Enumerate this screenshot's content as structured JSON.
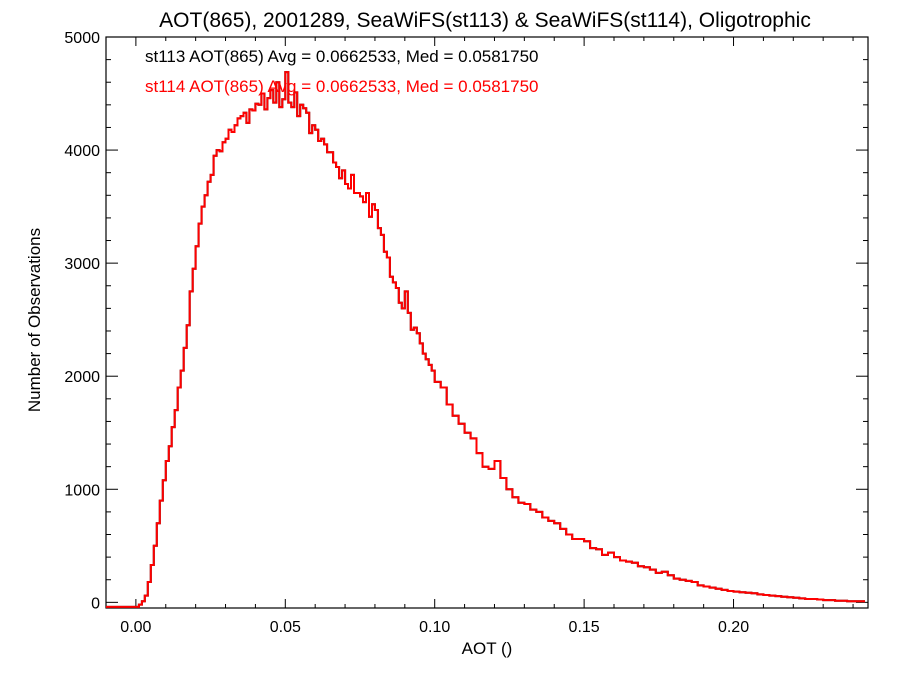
{
  "chart_data": {
    "type": "histogram-step",
    "title": "AOT(865), 2001289, SeaWiFS(st113) & SeaWiFS(st114), Oligotrophic",
    "xlabel": "AOT ()",
    "ylabel": "Number of Observations",
    "xlim": [
      -0.01,
      0.245
    ],
    "ylim": [
      -50,
      5000
    ],
    "x_ticks": [
      0.0,
      0.05,
      0.1,
      0.15,
      0.2
    ],
    "x_tick_labels": [
      "0.00",
      "0.05",
      "0.10",
      "0.15",
      "0.20"
    ],
    "y_ticks": [
      0,
      1000,
      2000,
      3000,
      4000,
      5000
    ],
    "y_tick_labels": [
      "0",
      "1000",
      "2000",
      "3000",
      "4000",
      "5000"
    ],
    "grid": false,
    "annotations": [
      {
        "text": "st113 AOT(865) Avg = 0.0662533, Med = 0.0581750",
        "color": "#000000"
      },
      {
        "text": "st114 AOT(865) Avg = 0.0662533, Med = 0.0581750",
        "color": "#ff0000"
      }
    ],
    "series": [
      {
        "name": "st113",
        "color": "#000000",
        "x": [
          -0.01,
          0.0,
          0.001,
          0.002,
          0.003,
          0.004,
          0.005,
          0.006,
          0.007,
          0.008,
          0.009,
          0.01,
          0.011,
          0.012,
          0.013,
          0.014,
          0.015,
          0.016,
          0.017,
          0.018,
          0.019,
          0.02,
          0.021,
          0.022,
          0.023,
          0.024,
          0.025,
          0.026,
          0.027,
          0.028,
          0.029,
          0.03,
          0.031,
          0.032,
          0.033,
          0.034,
          0.035,
          0.036,
          0.037,
          0.038,
          0.039,
          0.04,
          0.041,
          0.042,
          0.043,
          0.044,
          0.045,
          0.046,
          0.047,
          0.048,
          0.049,
          0.05,
          0.051,
          0.052,
          0.053,
          0.054,
          0.055,
          0.056,
          0.057,
          0.058,
          0.059,
          0.06,
          0.061,
          0.062,
          0.063,
          0.064,
          0.065,
          0.066,
          0.067,
          0.068,
          0.069,
          0.07,
          0.071,
          0.072,
          0.073,
          0.074,
          0.075,
          0.076,
          0.077,
          0.078,
          0.079,
          0.08,
          0.081,
          0.082,
          0.083,
          0.084,
          0.085,
          0.086,
          0.087,
          0.088,
          0.089,
          0.09,
          0.091,
          0.092,
          0.093,
          0.094,
          0.095,
          0.096,
          0.097,
          0.098,
          0.099,
          0.1,
          0.102,
          0.104,
          0.106,
          0.108,
          0.11,
          0.112,
          0.114,
          0.116,
          0.118,
          0.12,
          0.122,
          0.124,
          0.126,
          0.128,
          0.13,
          0.132,
          0.134,
          0.136,
          0.138,
          0.14,
          0.142,
          0.144,
          0.146,
          0.148,
          0.15,
          0.152,
          0.154,
          0.156,
          0.158,
          0.16,
          0.162,
          0.164,
          0.166,
          0.168,
          0.17,
          0.172,
          0.174,
          0.176,
          0.178,
          0.18,
          0.182,
          0.184,
          0.186,
          0.188,
          0.19,
          0.192,
          0.194,
          0.196,
          0.198,
          0.2,
          0.202,
          0.204,
          0.206,
          0.208,
          0.21,
          0.212,
          0.214,
          0.216,
          0.218,
          0.22,
          0.222,
          0.224,
          0.226,
          0.228,
          0.23,
          0.232,
          0.234,
          0.236,
          0.238,
          0.24,
          0.242,
          0.244
        ],
        "y": [
          -40,
          -40,
          -20,
          10,
          60,
          180,
          330,
          500,
          700,
          900,
          1080,
          1250,
          1380,
          1550,
          1700,
          1900,
          2050,
          2250,
          2450,
          2750,
          2950,
          3150,
          3350,
          3500,
          3600,
          3720,
          3780,
          3950,
          4000,
          3990,
          4070,
          4100,
          4180,
          4160,
          4220,
          4280,
          4300,
          4330,
          4240,
          4360,
          4350,
          4410,
          4400,
          4500,
          4360,
          4460,
          4530,
          4420,
          4600,
          4380,
          4450,
          4690,
          4420,
          4380,
          4510,
          4300,
          4400,
          4370,
          4330,
          4150,
          4220,
          4180,
          4080,
          4100,
          4050,
          3980,
          3980,
          3890,
          3850,
          3750,
          3820,
          3700,
          3660,
          3780,
          3620,
          3620,
          3590,
          3540,
          3620,
          3410,
          3520,
          3470,
          3310,
          3250,
          3100,
          3050,
          2880,
          2830,
          2780,
          2650,
          2600,
          2750,
          2560,
          2410,
          2430,
          2380,
          2290,
          2200,
          2150,
          2100,
          2050,
          1950,
          1900,
          1750,
          1650,
          1580,
          1500,
          1450,
          1320,
          1200,
          1180,
          1250,
          1100,
          1000,
          930,
          880,
          870,
          820,
          800,
          750,
          720,
          700,
          650,
          600,
          560,
          560,
          540,
          480,
          470,
          420,
          440,
          400,
          370,
          360,
          350,
          320,
          310,
          290,
          260,
          270,
          240,
          210,
          200,
          190,
          180,
          150,
          140,
          130,
          120,
          110,
          100,
          95,
          90,
          85,
          80,
          70,
          65,
          60,
          55,
          50,
          45,
          40,
          35,
          30,
          30,
          25,
          20,
          20,
          15,
          15,
          10,
          10,
          10
        ]
      },
      {
        "name": "st114",
        "color": "#ff0000",
        "x": [
          -0.01,
          0.0,
          0.001,
          0.002,
          0.003,
          0.004,
          0.005,
          0.006,
          0.007,
          0.008,
          0.009,
          0.01,
          0.011,
          0.012,
          0.013,
          0.014,
          0.015,
          0.016,
          0.017,
          0.018,
          0.019,
          0.02,
          0.021,
          0.022,
          0.023,
          0.024,
          0.025,
          0.026,
          0.027,
          0.028,
          0.029,
          0.03,
          0.031,
          0.032,
          0.033,
          0.034,
          0.035,
          0.036,
          0.037,
          0.038,
          0.039,
          0.04,
          0.041,
          0.042,
          0.043,
          0.044,
          0.045,
          0.046,
          0.047,
          0.048,
          0.049,
          0.05,
          0.051,
          0.052,
          0.053,
          0.054,
          0.055,
          0.056,
          0.057,
          0.058,
          0.059,
          0.06,
          0.061,
          0.062,
          0.063,
          0.064,
          0.065,
          0.066,
          0.067,
          0.068,
          0.069,
          0.07,
          0.071,
          0.072,
          0.073,
          0.074,
          0.075,
          0.076,
          0.077,
          0.078,
          0.079,
          0.08,
          0.081,
          0.082,
          0.083,
          0.084,
          0.085,
          0.086,
          0.087,
          0.088,
          0.089,
          0.09,
          0.091,
          0.092,
          0.093,
          0.094,
          0.095,
          0.096,
          0.097,
          0.098,
          0.099,
          0.1,
          0.102,
          0.104,
          0.106,
          0.108,
          0.11,
          0.112,
          0.114,
          0.116,
          0.118,
          0.12,
          0.122,
          0.124,
          0.126,
          0.128,
          0.13,
          0.132,
          0.134,
          0.136,
          0.138,
          0.14,
          0.142,
          0.144,
          0.146,
          0.148,
          0.15,
          0.152,
          0.154,
          0.156,
          0.158,
          0.16,
          0.162,
          0.164,
          0.166,
          0.168,
          0.17,
          0.172,
          0.174,
          0.176,
          0.178,
          0.18,
          0.182,
          0.184,
          0.186,
          0.188,
          0.19,
          0.192,
          0.194,
          0.196,
          0.198,
          0.2,
          0.202,
          0.204,
          0.206,
          0.208,
          0.21,
          0.212,
          0.214,
          0.216,
          0.218,
          0.22,
          0.222,
          0.224,
          0.226,
          0.228,
          0.23,
          0.232,
          0.234,
          0.236,
          0.238,
          0.24,
          0.242,
          0.244
        ],
        "y": [
          -40,
          -40,
          -20,
          10,
          60,
          180,
          330,
          500,
          700,
          900,
          1080,
          1250,
          1380,
          1550,
          1700,
          1900,
          2050,
          2250,
          2450,
          2750,
          2950,
          3150,
          3350,
          3500,
          3600,
          3720,
          3780,
          3950,
          4000,
          3990,
          4070,
          4100,
          4180,
          4160,
          4220,
          4280,
          4300,
          4330,
          4240,
          4360,
          4350,
          4410,
          4400,
          4500,
          4360,
          4460,
          4530,
          4420,
          4600,
          4380,
          4450,
          4690,
          4420,
          4380,
          4510,
          4300,
          4400,
          4370,
          4330,
          4150,
          4220,
          4180,
          4080,
          4100,
          4050,
          3980,
          3980,
          3890,
          3850,
          3750,
          3820,
          3700,
          3660,
          3780,
          3620,
          3620,
          3590,
          3540,
          3620,
          3410,
          3520,
          3470,
          3310,
          3250,
          3100,
          3050,
          2880,
          2830,
          2780,
          2650,
          2600,
          2750,
          2560,
          2410,
          2430,
          2380,
          2290,
          2200,
          2150,
          2100,
          2050,
          1950,
          1900,
          1750,
          1650,
          1580,
          1500,
          1450,
          1320,
          1200,
          1180,
          1250,
          1100,
          1000,
          930,
          880,
          870,
          820,
          800,
          750,
          720,
          700,
          650,
          600,
          560,
          560,
          540,
          480,
          470,
          420,
          440,
          400,
          370,
          360,
          350,
          320,
          310,
          290,
          260,
          270,
          240,
          210,
          200,
          190,
          180,
          150,
          140,
          130,
          120,
          110,
          100,
          95,
          90,
          85,
          80,
          70,
          65,
          60,
          55,
          50,
          45,
          40,
          35,
          30,
          30,
          25,
          20,
          20,
          15,
          15,
          10,
          10,
          10
        ]
      }
    ]
  }
}
